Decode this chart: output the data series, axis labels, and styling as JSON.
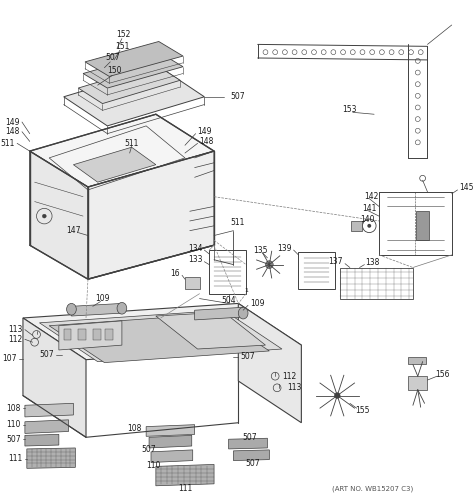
{
  "art_no": "(ART NO. WB15207 C3)",
  "bg_color": "#ffffff",
  "lc": "#404040",
  "tc": "#1a1a1a",
  "fig_width": 4.74,
  "fig_height": 5.04,
  "dpi": 100
}
